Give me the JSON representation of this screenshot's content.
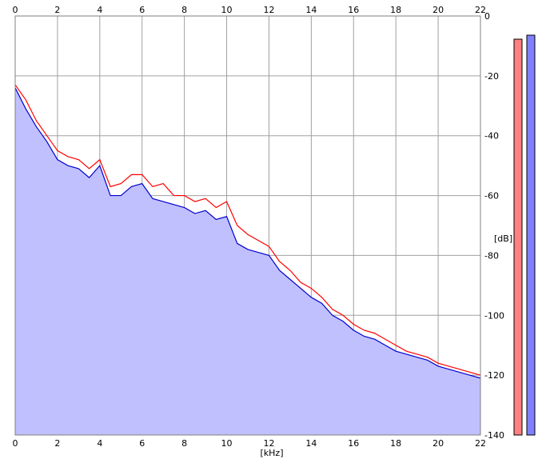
{
  "chart_data": {
    "type": "area",
    "xlabel": "[kHz]",
    "ylabel": "[dB]",
    "xlim": [
      0,
      22
    ],
    "ylim": [
      -140,
      0
    ],
    "x_ticks": [
      0,
      2,
      4,
      6,
      8,
      10,
      12,
      14,
      16,
      18,
      20,
      22
    ],
    "y_ticks": [
      0,
      -20,
      -40,
      -60,
      -80,
      -100,
      -120,
      -140
    ],
    "grid": true,
    "series": [
      {
        "color": "#ff0000",
        "x": [
          0,
          0.5,
          1,
          1.5,
          2,
          2.5,
          3,
          3.5,
          4,
          4.5,
          5,
          5.5,
          6,
          6.5,
          7,
          7.5,
          8,
          8.5,
          9,
          9.5,
          10,
          10.5,
          11,
          11.5,
          12,
          12.5,
          13,
          13.5,
          14,
          14.5,
          15,
          15.5,
          16,
          16.5,
          17,
          17.5,
          18,
          18.5,
          19,
          19.5,
          20,
          20.5,
          21,
          21.5,
          22
        ],
        "values": [
          -23,
          -28,
          -35,
          -40,
          -45,
          -47,
          -48,
          -51,
          -48,
          -57,
          -56,
          -53,
          -53,
          -57,
          -56,
          -60,
          -60,
          -62,
          -61,
          -64,
          -62,
          -70,
          -73,
          -75,
          -77,
          -82,
          -85,
          -89,
          -91,
          -94,
          -98,
          -100,
          -103,
          -105,
          -106,
          -108,
          -110,
          -112,
          -113,
          -114,
          -116,
          -117,
          -118,
          -119,
          -120
        ]
      },
      {
        "color": "#0000cc",
        "x": [
          0,
          0.5,
          1,
          1.5,
          2,
          2.5,
          3,
          3.5,
          4,
          4.5,
          5,
          5.5,
          6,
          6.5,
          7,
          7.5,
          8,
          8.5,
          9,
          9.5,
          10,
          10.5,
          11,
          11.5,
          12,
          12.5,
          13,
          13.5,
          14,
          14.5,
          15,
          15.5,
          16,
          16.5,
          17,
          17.5,
          18,
          18.5,
          19,
          19.5,
          20,
          20.5,
          21,
          21.5,
          22
        ],
        "values": [
          -24,
          -31,
          -37,
          -42,
          -48,
          -50,
          -51,
          -54,
          -50,
          -60,
          -60,
          -57,
          -56,
          -61,
          -62,
          -63,
          -64,
          -66,
          -65,
          -68,
          -67,
          -76,
          -78,
          -79,
          -80,
          -85,
          -88,
          -91,
          -94,
          -96,
          -100,
          -102,
          -105,
          -107,
          -108,
          -110,
          -112,
          -113,
          -114,
          -115,
          -117,
          -118,
          -119,
          -120,
          -121
        ]
      }
    ],
    "fill_color": "#c0c0ff",
    "level_meters": [
      {
        "color": "#ff8080",
        "level": 0.99
      },
      {
        "color": "#8080ff",
        "level": 1.0
      }
    ]
  }
}
